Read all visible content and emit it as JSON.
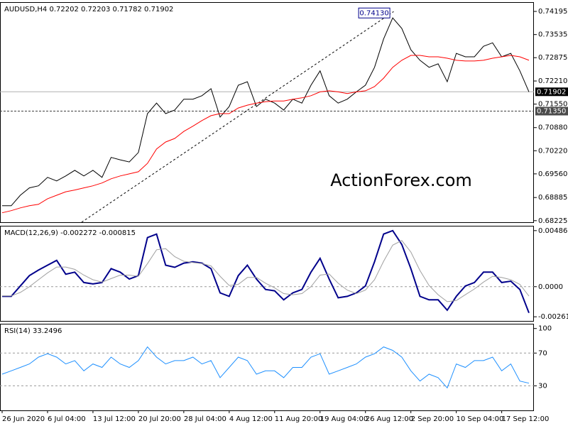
{
  "chart_data": [
    {
      "type": "line",
      "title": "AUDUSD,H4  0.72202 0.72203 0.71782 0.71902",
      "watermark": "ActionForex.com",
      "categories": [
        "26 Jun 2020",
        null,
        null,
        null,
        null,
        "6 Jul 04:00",
        null,
        null,
        null,
        null,
        "13 Jul 12:00",
        null,
        null,
        null,
        null,
        "20 Jul 20:00",
        null,
        null,
        null,
        null,
        "28 Jul 04:00",
        null,
        null,
        null,
        null,
        "4 Aug 12:00",
        null,
        null,
        null,
        null,
        "11 Aug 20:00",
        null,
        null,
        null,
        null,
        "19 Aug 04:00",
        null,
        null,
        null,
        null,
        "26 Aug 12:00",
        null,
        null,
        null,
        null,
        "2 Sep 20:00",
        null,
        null,
        null,
        null,
        "10 Sep 04:00",
        null,
        null,
        null,
        null,
        "17 Sep 12:00",
        null,
        null,
        null
      ],
      "series": [
        {
          "color": "#000000",
          "values": [
            0.6865,
            0.6865,
            0.6895,
            0.6916,
            0.6922,
            0.6946,
            0.6936,
            0.695,
            0.6966,
            0.695,
            0.6966,
            0.6946,
            0.7003,
            0.6996,
            0.699,
            0.7017,
            0.7128,
            0.7158,
            0.7128,
            0.7138,
            0.7169,
            0.7169,
            0.7179,
            0.7199,
            0.7118,
            0.7148,
            0.7209,
            0.7219,
            0.7148,
            0.7169,
            0.7158,
            0.7138,
            0.7169,
            0.7158,
            0.7209,
            0.725,
            0.7179,
            0.7158,
            0.7169,
            0.719,
            0.7209,
            0.726,
            0.7341,
            0.7401,
            0.7371,
            0.731,
            0.728,
            0.726,
            0.727,
            0.7219,
            0.73,
            0.729,
            0.729,
            0.732,
            0.733,
            0.729,
            0.73,
            0.725,
            0.719
          ]
        },
        {
          "color": "#ff0000",
          "values": [
            0.6845,
            0.6851,
            0.6859,
            0.6865,
            0.6869,
            0.6885,
            0.6895,
            0.6905,
            0.691,
            0.6916,
            0.6922,
            0.693,
            0.6942,
            0.695,
            0.6956,
            0.6962,
            0.6986,
            0.7027,
            0.7047,
            0.7057,
            0.7077,
            0.7092,
            0.7108,
            0.7122,
            0.7128,
            0.7128,
            0.7144,
            0.7152,
            0.7158,
            0.7162,
            0.7164,
            0.7164,
            0.7169,
            0.7173,
            0.7179,
            0.719,
            0.7193,
            0.719,
            0.7185,
            0.719,
            0.7193,
            0.7205,
            0.7229,
            0.726,
            0.728,
            0.7294,
            0.7294,
            0.729,
            0.729,
            0.7286,
            0.728,
            0.7278,
            0.7278,
            0.728,
            0.7286,
            0.729,
            0.7294,
            0.729,
            0.728
          ]
        }
      ],
      "ylim": [
        0.6818,
        0.7446
      ],
      "yticks": [
        0.68225,
        0.68885,
        {
          "value": 0.6956,
          "label": "0.69560"
        },
        {
          "value": 0.7022,
          "label": "0.70220"
        },
        {
          "value": 0.7088,
          "label": "0.70880"
        },
        {
          "value": 0.7155,
          "label": "0.71550"
        },
        {
          "value": 0.7221,
          "label": "0.72210"
        },
        0.72875,
        0.73535,
        0.74195
      ],
      "peak_label": {
        "value": 0.7413,
        "label": "0.74130"
      },
      "price_line": {
        "value": 0.71902,
        "label": "0.71902"
      },
      "level_line": {
        "value": 0.7135,
        "label": "0.71350"
      },
      "trendline": {
        "x": [
          8.75,
          43.1
        ],
        "y": [
          0.6818,
          0.7419
        ]
      }
    },
    {
      "type": "line",
      "title": "MACD(12,26,9) -0.002272 -0.000815",
      "series": [
        {
          "color": "#00008b",
          "values": [
            -0.00084,
            -0.00084,
            6e-05,
            0.00096,
            0.00144,
            0.00186,
            0.00228,
            0.00108,
            0.00126,
            0.00036,
            0.00024,
            0.00036,
            0.00156,
            0.00126,
            0.00066,
            0.00096,
            0.00426,
            0.00456,
            0.00186,
            0.00168,
            0.00204,
            0.00216,
            0.00204,
            0.00156,
            -0.00054,
            -0.00084,
            0.00096,
            0.00186,
            0.00066,
            -0.00024,
            -0.00036,
            -0.00114,
            -0.00054,
            -0.00024,
            0.00126,
            0.00246,
            0.00066,
            -0.00096,
            -0.00084,
            -0.00054,
            6e-05,
            0.00216,
            0.00456,
            0.00486,
            0.00366,
            0.00156,
            -0.00084,
            -0.00114,
            -0.00114,
            -0.00204,
            -0.00084,
            6e-05,
            0.00036,
            0.00126,
            0.00126,
            0.00036,
            0.00048,
            -0.00024,
            -0.002272
          ]
        },
        {
          "color": "#a0a0a0",
          "values": [
            -0.0008,
            -0.0008,
            -0.0005,
            0.0,
            0.0006,
            0.0012,
            0.0017,
            0.0017,
            0.0015,
            0.001,
            0.0006,
            0.0004,
            0.0007,
            0.001,
            0.001,
            0.0009,
            0.002,
            0.0032,
            0.0033,
            0.0026,
            0.0022,
            0.0021,
            0.002,
            0.0018,
            0.0009,
            0.0001,
            0.0002,
            0.0008,
            0.0008,
            0.0003,
            -0.0001,
            -0.0006,
            -0.0007,
            -0.0006,
            0.0,
            0.001,
            0.0011,
            0.0003,
            -0.0003,
            -0.0006,
            -0.0003,
            0.0006,
            0.0022,
            0.0036,
            0.004,
            0.003,
            0.0014,
            0.0001,
            -0.0007,
            -0.0013,
            -0.0012,
            -0.0007,
            -0.0002,
            0.0004,
            0.0009,
            0.0008,
            0.0006,
            0.0002,
            -0.000815
          ]
        }
      ],
      "ylim": [
        -0.00297,
        0.00528
      ],
      "yticks": [
        -0.002611,
        {
          "value": 0,
          "label": "0.0000"
        },
        0.004861
      ],
      "levels": [
        0
      ]
    },
    {
      "type": "line",
      "title": "RSI(14) 33.2496",
      "series": [
        {
          "color": "#1e90ff",
          "values": [
            44.2,
            48.3,
            52.5,
            56.7,
            65,
            69.2,
            65,
            56.7,
            60.8,
            48.3,
            56.7,
            52.5,
            65,
            56.7,
            52.5,
            60.8,
            77.5,
            65,
            56.7,
            60.8,
            60.8,
            65,
            56.7,
            60.8,
            40,
            52.5,
            65,
            60.8,
            44.2,
            48.3,
            48.3,
            40,
            52.5,
            52.5,
            65,
            69.2,
            44.2,
            48.3,
            52.5,
            56.7,
            65,
            69.2,
            77.5,
            73.3,
            65,
            48.3,
            35.8,
            44.2,
            40,
            27.5,
            56.7,
            52.5,
            60.8,
            60.8,
            65,
            48.3,
            56.7,
            35.8,
            33.2496
          ]
        }
      ],
      "ylim": [
        0,
        105.8
      ],
      "yticks": [
        30,
        70,
        100
      ],
      "levels": [
        30,
        70
      ]
    }
  ]
}
